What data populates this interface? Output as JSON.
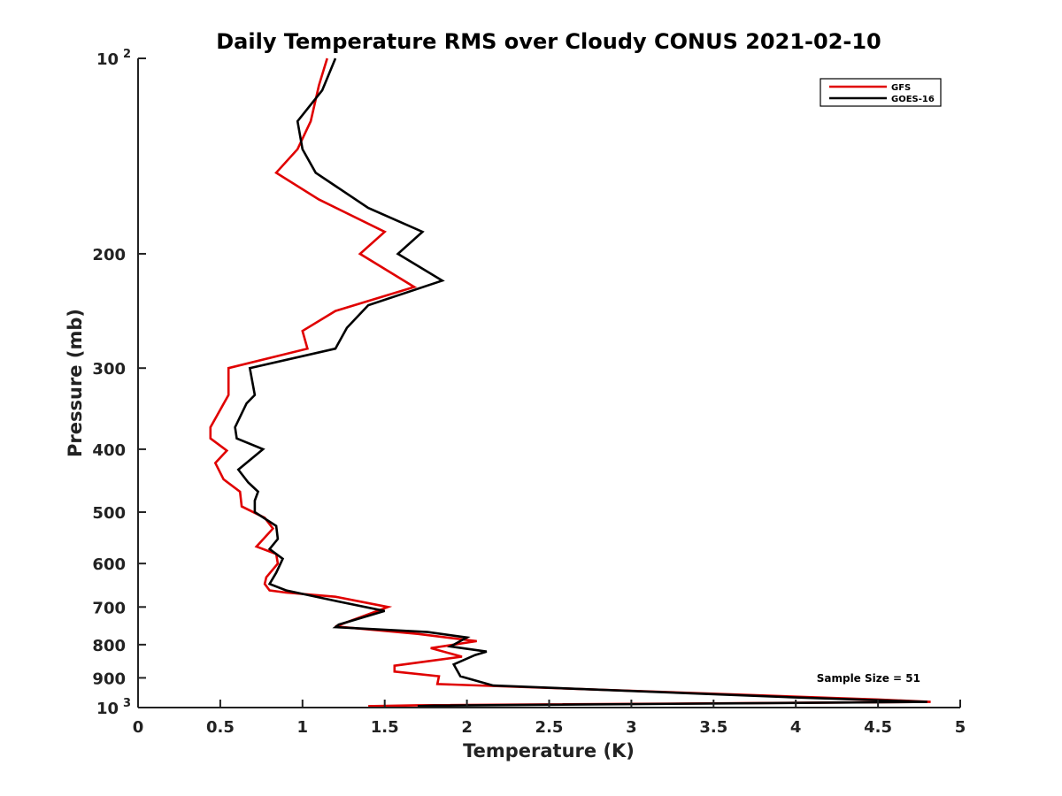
{
  "chart_data": {
    "type": "line",
    "title": "Daily Temperature RMS over Cloudy CONUS 2021-02-10",
    "xlabel": "Temperature (K)",
    "ylabel": "Pressure (mb)",
    "xlim": [
      0,
      5
    ],
    "ylim": [
      100,
      1000
    ],
    "y_scale": "log",
    "y_reversed": true,
    "x_ticks": [
      0,
      0.5,
      1,
      1.5,
      2,
      2.5,
      3,
      3.5,
      4,
      4.5,
      5
    ],
    "x_tick_labels": [
      "0",
      "0.5",
      "1",
      "1.5",
      "2",
      "2.5",
      "3",
      "3.5",
      "4",
      "4.5",
      "5"
    ],
    "y_ticks": [
      {
        "value": 100,
        "label": "10",
        "sup": "2"
      },
      {
        "value": 200,
        "label": "200"
      },
      {
        "value": 300,
        "label": "300"
      },
      {
        "value": 400,
        "label": "400"
      },
      {
        "value": 500,
        "label": "500"
      },
      {
        "value": 600,
        "label": "600"
      },
      {
        "value": 700,
        "label": "700"
      },
      {
        "value": 800,
        "label": "800"
      },
      {
        "value": 900,
        "label": "900"
      },
      {
        "value": 1000,
        "label": "10",
        "sup": "3"
      }
    ],
    "grid": false,
    "legend_position": "top-right",
    "annotation": "Sample Size = 51",
    "series": [
      {
        "name": "GFS",
        "color": "#e00000",
        "points": [
          [
            1.15,
            100
          ],
          [
            1.1,
            110
          ],
          [
            1.05,
            125
          ],
          [
            0.97,
            138
          ],
          [
            0.84,
            150
          ],
          [
            1.1,
            165
          ],
          [
            1.5,
            185
          ],
          [
            1.35,
            200
          ],
          [
            1.68,
            225
          ],
          [
            1.2,
            245
          ],
          [
            1.0,
            263
          ],
          [
            1.03,
            280
          ],
          [
            0.55,
            300
          ],
          [
            0.55,
            330
          ],
          [
            0.48,
            355
          ],
          [
            0.44,
            370
          ],
          [
            0.44,
            385
          ],
          [
            0.54,
            402
          ],
          [
            0.47,
            420
          ],
          [
            0.52,
            445
          ],
          [
            0.62,
            465
          ],
          [
            0.63,
            490
          ],
          [
            0.77,
            510
          ],
          [
            0.82,
            530
          ],
          [
            0.72,
            565
          ],
          [
            0.84,
            580
          ],
          [
            0.85,
            600
          ],
          [
            0.78,
            630
          ],
          [
            0.77,
            645
          ],
          [
            0.8,
            660
          ],
          [
            0.9,
            665
          ],
          [
            1.2,
            675
          ],
          [
            1.52,
            700
          ],
          [
            1.2,
            750
          ],
          [
            1.7,
            770
          ],
          [
            2.06,
            790
          ],
          [
            1.78,
            810
          ],
          [
            1.97,
            835
          ],
          [
            1.56,
            862
          ],
          [
            1.56,
            880
          ],
          [
            1.83,
            895
          ],
          [
            1.82,
            920
          ],
          [
            4.5,
            972
          ],
          [
            4.82,
            980
          ],
          [
            1.7,
            992
          ],
          [
            1.4,
            995
          ]
        ]
      },
      {
        "name": "GOES-16",
        "color": "#000000",
        "points": [
          [
            1.2,
            100
          ],
          [
            1.12,
            112
          ],
          [
            0.97,
            125
          ],
          [
            1.0,
            138
          ],
          [
            1.08,
            150
          ],
          [
            1.4,
            170
          ],
          [
            1.73,
            185
          ],
          [
            1.58,
            200
          ],
          [
            1.85,
            220
          ],
          [
            1.4,
            240
          ],
          [
            1.27,
            260
          ],
          [
            1.2,
            280
          ],
          [
            0.68,
            300
          ],
          [
            0.71,
            330
          ],
          [
            0.66,
            340
          ],
          [
            0.59,
            370
          ],
          [
            0.6,
            385
          ],
          [
            0.76,
            400
          ],
          [
            0.61,
            430
          ],
          [
            0.67,
            450
          ],
          [
            0.73,
            465
          ],
          [
            0.71,
            480
          ],
          [
            0.71,
            500
          ],
          [
            0.84,
            525
          ],
          [
            0.85,
            550
          ],
          [
            0.8,
            570
          ],
          [
            0.88,
            590
          ],
          [
            0.84,
            620
          ],
          [
            0.8,
            645
          ],
          [
            0.9,
            660
          ],
          [
            1.2,
            685
          ],
          [
            1.5,
            710
          ],
          [
            1.22,
            745
          ],
          [
            1.2,
            752
          ],
          [
            1.76,
            765
          ],
          [
            2.0,
            780
          ],
          [
            1.9,
            805
          ],
          [
            2.12,
            820
          ],
          [
            2.05,
            830
          ],
          [
            1.92,
            858
          ],
          [
            1.96,
            895
          ],
          [
            2.16,
            925
          ],
          [
            4.0,
            965
          ],
          [
            4.8,
            980
          ],
          [
            1.8,
            993
          ],
          [
            1.7,
            995
          ]
        ]
      }
    ]
  }
}
